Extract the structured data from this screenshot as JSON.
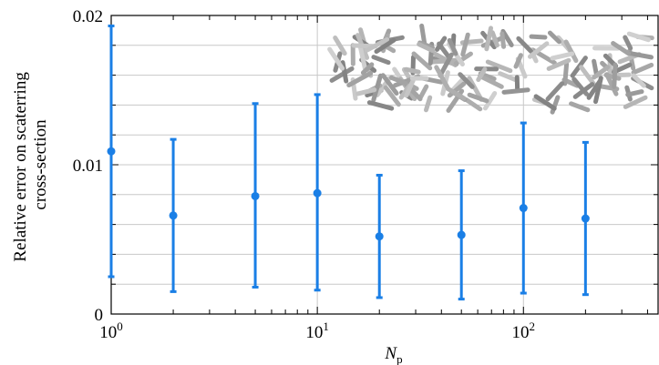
{
  "chart_data": {
    "type": "scatter",
    "xscale": "log",
    "xlim": [
      1,
      450
    ],
    "ylim": [
      0,
      0.02
    ],
    "grid": true,
    "xlabel": {
      "main": "N",
      "sub": "p"
    },
    "ylabel": [
      "Relative error on scaterring",
      "cross-section"
    ],
    "x_ticks": [
      {
        "value": 1,
        "base": "10",
        "exp": "0"
      },
      {
        "value": 10,
        "base": "10",
        "exp": "1"
      },
      {
        "value": 100,
        "base": "10",
        "exp": "2"
      }
    ],
    "y_ticks": [
      {
        "value": 0,
        "label": "0"
      },
      {
        "value": 0.01,
        "label": "0.01"
      },
      {
        "value": 0.02,
        "label": "0.02"
      }
    ],
    "y_minor_ticks": [
      0.002,
      0.004,
      0.006,
      0.008,
      0.012,
      0.014,
      0.016,
      0.018
    ],
    "series": [
      {
        "color": "#1a7fe6",
        "points": [
          {
            "x": 1,
            "y": 0.0109,
            "lo": 0.0025,
            "hi": 0.0193
          },
          {
            "x": 2,
            "y": 0.0066,
            "lo": 0.0015,
            "hi": 0.0117
          },
          {
            "x": 5,
            "y": 0.0079,
            "lo": 0.0018,
            "hi": 0.0141
          },
          {
            "x": 10,
            "y": 0.0081,
            "lo": 0.0016,
            "hi": 0.0147
          },
          {
            "x": 20,
            "y": 0.0052,
            "lo": 0.0011,
            "hi": 0.0093
          },
          {
            "x": 50,
            "y": 0.0053,
            "lo": 0.001,
            "hi": 0.0096
          },
          {
            "x": 100,
            "y": 0.0071,
            "lo": 0.0014,
            "hi": 0.0128
          },
          {
            "x": 200,
            "y": 0.0064,
            "lo": 0.0013,
            "hi": 0.0115
          }
        ]
      }
    ],
    "inset_image": "random-rod-particles"
  }
}
